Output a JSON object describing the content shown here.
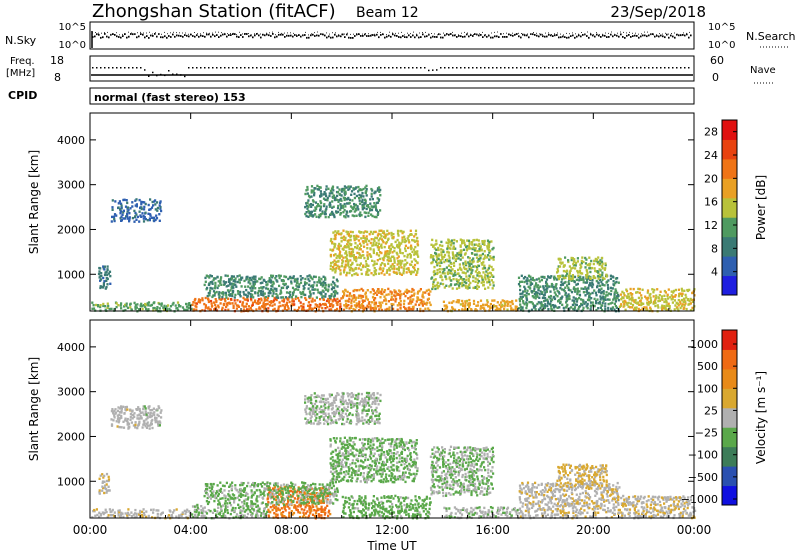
{
  "header": {
    "title": "Zhongshan Station (fitACF)",
    "beam": "Beam 12",
    "date": "23/Sep/2018"
  },
  "panels": {
    "nsky_label": "N.Sky",
    "nsearch_label": "N.Search",
    "freq_label_line1": "Freq.",
    "freq_label_line2": "[MHz]",
    "nave_label": "Nave",
    "cpid_label": "CPID",
    "cpid_text": "normal (fast stereo) 153",
    "noise_ticks_left": [
      "10^5",
      "10^0"
    ],
    "noise_ticks_right": [
      "10^5",
      "10^0"
    ],
    "freq_ticks": [
      "18",
      "8"
    ],
    "nave_ticks": [
      "60",
      "0"
    ]
  },
  "colors": {
    "power_scale": [
      "#1f1fe0",
      "#2e5fb0",
      "#3a7a74",
      "#4f9a60",
      "#b8c23a",
      "#e9a024",
      "#ef7416",
      "#e8420f",
      "#e01010"
    ],
    "velocity_scale": [
      "#1010e0",
      "#2a50b0",
      "#3c7c58",
      "#5aa84a",
      "#b0b0b0",
      "#d9a830",
      "#e88a18",
      "#ef6a14",
      "#e02010"
    ]
  },
  "chart_data": [
    {
      "type": "heatmap",
      "name": "power",
      "ylabel": "Slant Range [km]",
      "yticks": [
        "1000",
        "2000",
        "3000",
        "4000"
      ],
      "ylim": [
        180,
        4600
      ],
      "xlim": [
        0,
        24
      ],
      "xticks": [
        "00:00",
        "04:00",
        "08:00",
        "12:00",
        "16:00",
        "20:00",
        "00:00"
      ],
      "colorbar": {
        "label": "Power [dB]",
        "ticks": [
          "4",
          "8",
          "12",
          "16",
          "20",
          "24",
          "28"
        ],
        "range": [
          0,
          30
        ]
      },
      "regions": [
        {
          "t0": 0.0,
          "t1": 4.0,
          "r0": 200,
          "r1": 400,
          "value": 12
        },
        {
          "t0": 0.8,
          "t1": 2.8,
          "r0": 2200,
          "r1": 2700,
          "value": 6
        },
        {
          "t0": 0.3,
          "t1": 0.8,
          "r0": 700,
          "r1": 1200,
          "value": 8
        },
        {
          "t0": 4.0,
          "t1": 10.0,
          "r0": 200,
          "r1": 500,
          "value": 22
        },
        {
          "t0": 4.5,
          "t1": 9.8,
          "r0": 500,
          "r1": 1000,
          "value": 10
        },
        {
          "t0": 8.5,
          "t1": 11.5,
          "r0": 2300,
          "r1": 3000,
          "value": 10
        },
        {
          "t0": 9.5,
          "t1": 13.0,
          "r0": 1000,
          "r1": 2000,
          "value": 16
        },
        {
          "t0": 10.0,
          "t1": 13.5,
          "r0": 200,
          "r1": 700,
          "value": 20
        },
        {
          "t0": 13.5,
          "t1": 16.0,
          "r0": 700,
          "r1": 1800,
          "value": 14
        },
        {
          "t0": 14.0,
          "t1": 17.0,
          "r0": 200,
          "r1": 450,
          "value": 18
        },
        {
          "t0": 17.0,
          "t1": 21.0,
          "r0": 200,
          "r1": 1000,
          "value": 10
        },
        {
          "t0": 18.5,
          "t1": 20.5,
          "r0": 900,
          "r1": 1400,
          "value": 14
        },
        {
          "t0": 21.0,
          "t1": 24.0,
          "r0": 200,
          "r1": 700,
          "value": 16
        }
      ]
    },
    {
      "type": "heatmap",
      "name": "velocity",
      "ylabel": "Slant Range [km]",
      "yticks": [
        "1000",
        "2000",
        "3000",
        "4000"
      ],
      "ylim": [
        180,
        4600
      ],
      "xlim": [
        0,
        24
      ],
      "xlabel": "Time UT",
      "xticks": [
        "00:00",
        "04:00",
        "08:00",
        "12:00",
        "16:00",
        "20:00",
        "00:00"
      ],
      "colorbar": {
        "label": "Velocity [m s⁻¹]",
        "ticks": [
          "1000",
          "500",
          "100",
          "25",
          "−25",
          "−100",
          "−500",
          "−1000"
        ],
        "range": [
          -1200,
          1200
        ]
      },
      "regions": [
        {
          "t0": 0.0,
          "t1": 4.0,
          "r0": 200,
          "r1": 400,
          "value": 60
        },
        {
          "t0": 0.8,
          "t1": 2.8,
          "r0": 2200,
          "r1": 2700,
          "value": 0
        },
        {
          "t0": 0.3,
          "t1": 0.8,
          "r0": 700,
          "r1": 1200,
          "value": 60
        },
        {
          "t0": 4.0,
          "t1": 7.0,
          "r0": 200,
          "r1": 500,
          "value": -150
        },
        {
          "t0": 7.0,
          "t1": 9.5,
          "r0": 200,
          "r1": 900,
          "value": 700
        },
        {
          "t0": 4.5,
          "t1": 9.8,
          "r0": 500,
          "r1": 1000,
          "value": -200
        },
        {
          "t0": 8.5,
          "t1": 11.5,
          "r0": 2300,
          "r1": 3000,
          "value": -80
        },
        {
          "t0": 9.5,
          "t1": 13.0,
          "r0": 1000,
          "r1": 2000,
          "value": -200
        },
        {
          "t0": 10.0,
          "t1": 13.5,
          "r0": 200,
          "r1": 700,
          "value": -250
        },
        {
          "t0": 13.5,
          "t1": 16.0,
          "r0": 700,
          "r1": 1800,
          "value": -150
        },
        {
          "t0": 14.0,
          "t1": 17.0,
          "r0": 200,
          "r1": 450,
          "value": -60
        },
        {
          "t0": 17.0,
          "t1": 21.0,
          "r0": 200,
          "r1": 1000,
          "value": 70
        },
        {
          "t0": 18.5,
          "t1": 20.5,
          "r0": 900,
          "r1": 1400,
          "value": 200
        },
        {
          "t0": 21.0,
          "t1": 24.0,
          "r0": 200,
          "r1": 700,
          "value": 80
        }
      ]
    }
  ]
}
